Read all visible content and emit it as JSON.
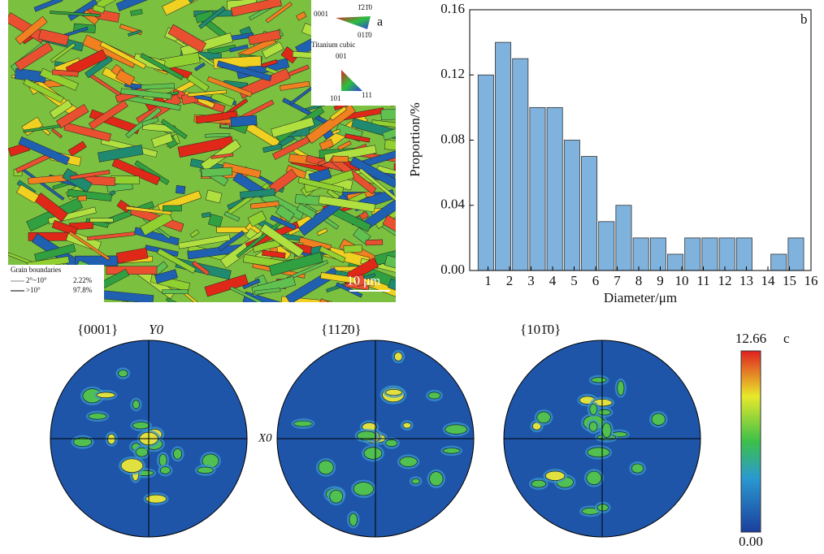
{
  "panel_a": {
    "label": "a",
    "hex_key": {
      "corner_left": "0001",
      "corner_right": "1̄21̄0",
      "corner_bottom": "011̄0",
      "name": "Titanium cubic"
    },
    "cubic_key": {
      "top": "001",
      "left": "101",
      "right": "111"
    },
    "grain_boundaries": {
      "title": "Grain boundaries",
      "rows": [
        [
          "2°~10°",
          "2.22%"
        ],
        [
          ">10°",
          "97.8%"
        ]
      ]
    },
    "scale_bar": "10 μm"
  },
  "chart_data": {
    "type": "histogram",
    "label": "b",
    "xlabel": "Diameter/μm",
    "ylabel": "Proportion/%",
    "color": "#7fb2dc",
    "bins": [
      0.5,
      1.3,
      2.1,
      2.9,
      3.7,
      4.5,
      5.3,
      6.1,
      6.9,
      7.7,
      8.5,
      9.3,
      10.1,
      10.9,
      11.7,
      12.5,
      13.3,
      14.1,
      14.9,
      15.7
    ],
    "values": [
      0.12,
      0.14,
      0.13,
      0.1,
      0.1,
      0.08,
      0.07,
      0.03,
      0.04,
      0.02,
      0.02,
      0.01,
      0.02,
      0.02,
      0.02,
      0.02,
      0,
      0.01,
      0.02
    ],
    "xlim": [
      0.15,
      16
    ],
    "xticks": [
      1,
      2,
      3,
      4,
      5,
      6,
      7,
      8,
      9,
      10,
      11,
      12,
      13,
      14,
      15,
      16
    ],
    "ylim": [
      0,
      0.16
    ],
    "yticks": [
      {
        "value": 0,
        "label": "0.00"
      },
      {
        "value": 0.04,
        "label": "0.04"
      },
      {
        "value": 0.08,
        "label": "0.08"
      },
      {
        "value": 0.12,
        "label": "0.12"
      },
      {
        "value": 0.16,
        "label": "0.16"
      }
    ]
  },
  "panel_c": {
    "label": "c",
    "figures": [
      "{0001}",
      "{112̄0}",
      "{101̄0}"
    ],
    "y_axis": "Y0",
    "x_axis": "X0",
    "colorbar": {
      "max": "12.66",
      "min": "0.00"
    }
  }
}
